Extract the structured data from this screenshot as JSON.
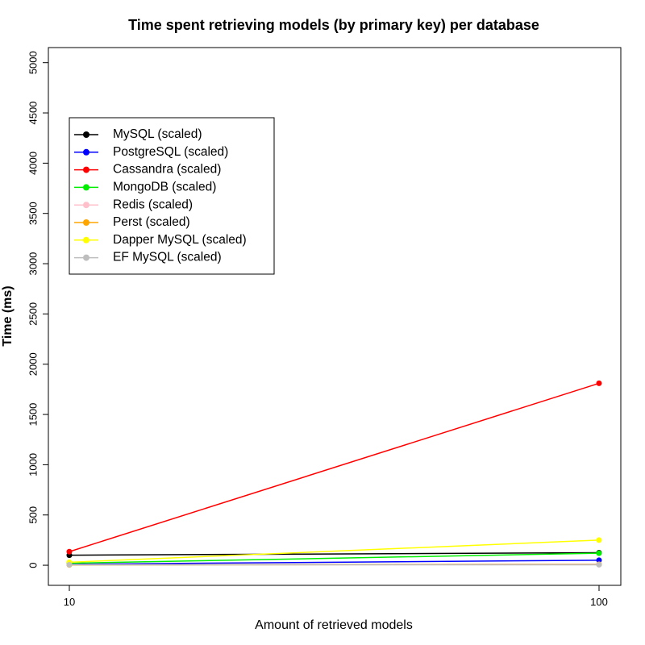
{
  "chart_data": {
    "type": "line",
    "title": "Time spent retrieving models (by primary key) per database",
    "xlabel": "Amount of retrieved models",
    "ylabel": "Time (ms)",
    "x": [
      10,
      100
    ],
    "x_ticks": [
      "10",
      "100"
    ],
    "ylim": [
      -200,
      5150
    ],
    "y_ticks": [
      "0",
      "500",
      "1000",
      "1500",
      "2000",
      "2500",
      "3000",
      "3500",
      "4000",
      "4500",
      "5000"
    ],
    "y_tick_values": [
      0,
      500,
      1000,
      1500,
      2000,
      2500,
      3000,
      3500,
      4000,
      4500,
      5000
    ],
    "legend_position": "top-left",
    "series": [
      {
        "name": "MySQL (scaled)",
        "color": "#000000",
        "values": [
          100,
          125
        ]
      },
      {
        "name": "PostgreSQL (scaled)",
        "color": "#0000ff",
        "values": [
          10,
          50
        ]
      },
      {
        "name": "Cassandra (scaled)",
        "color": "#ff0000",
        "values": [
          135,
          1810
        ]
      },
      {
        "name": "MongoDB (scaled)",
        "color": "#00ee00",
        "values": [
          20,
          120
        ]
      },
      {
        "name": "Redis (scaled)",
        "color": "#ffc0cb",
        "values": [
          5,
          10
        ]
      },
      {
        "name": "Perst (scaled)",
        "color": "#ffa500",
        "values": [
          3,
          8
        ]
      },
      {
        "name": "Dapper MySQL (scaled)",
        "color": "#ffff00",
        "values": [
          30,
          250
        ]
      },
      {
        "name": "EF MySQL (scaled)",
        "color": "#bebebe",
        "values": [
          5,
          5
        ]
      }
    ]
  }
}
